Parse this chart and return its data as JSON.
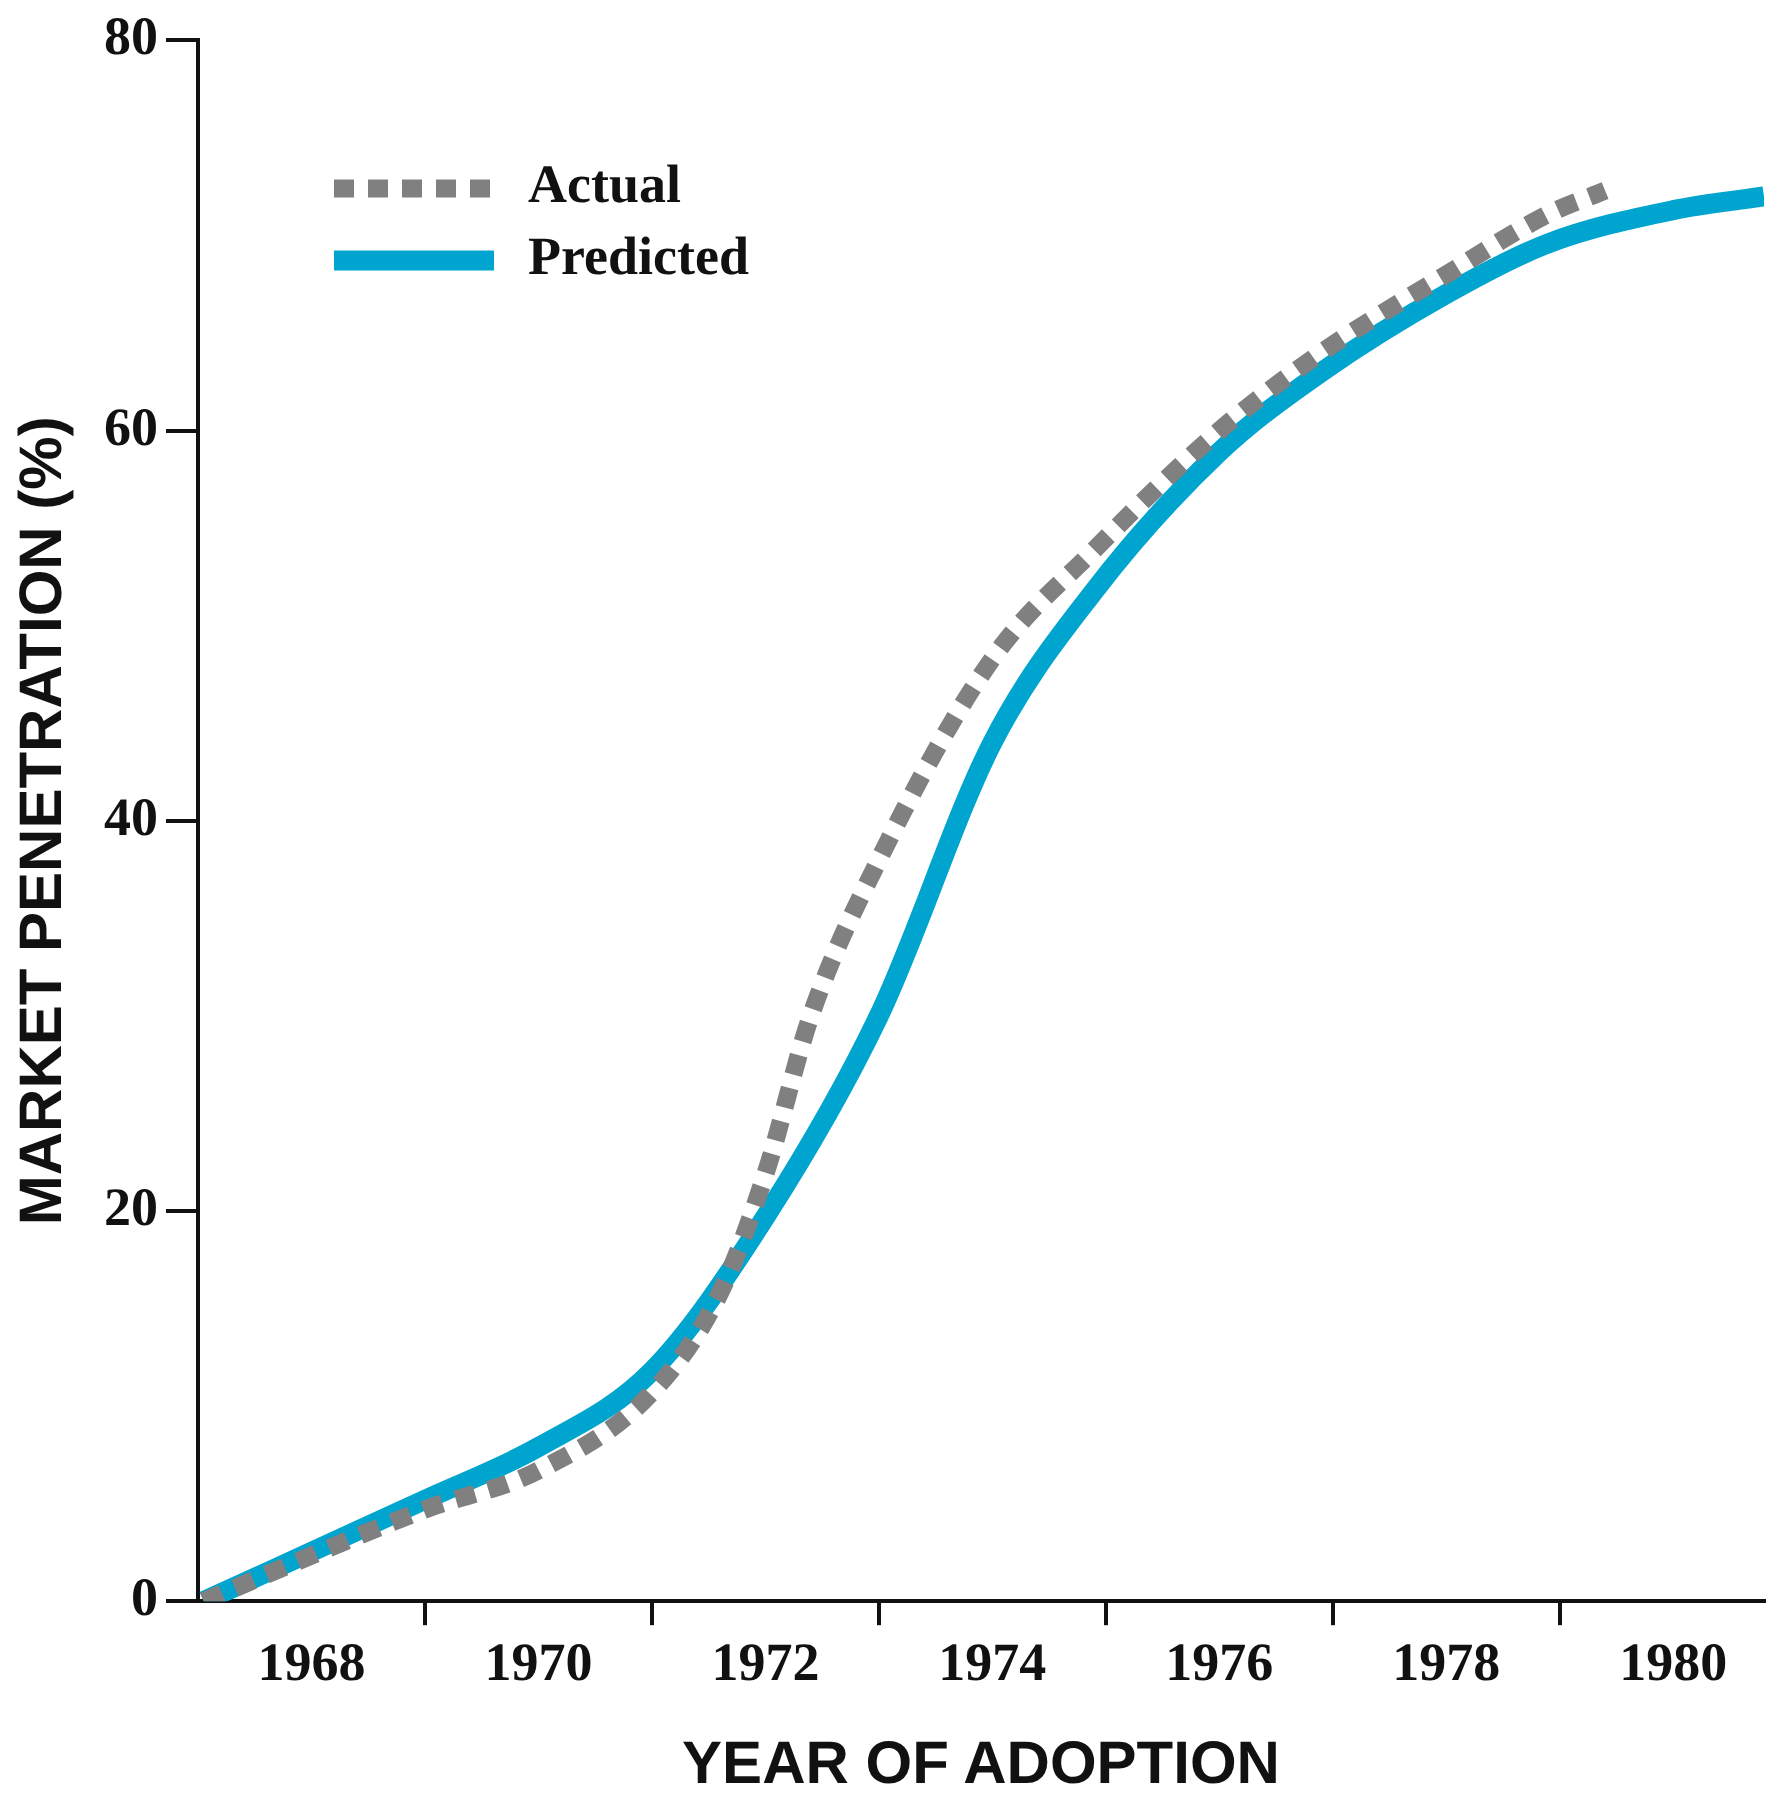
{
  "chart_data": {
    "type": "line",
    "xlabel": "YEAR OF ADOPTION",
    "ylabel": "MARKET PENETRATION (%)",
    "xlim": [
      1967,
      1980.8
    ],
    "xticks": [
      {
        "value": 1968,
        "label": "1968"
      },
      {
        "value": 1969,
        "label": null
      },
      {
        "value": 1970,
        "label": "1970"
      },
      {
        "value": 1971,
        "label": null
      },
      {
        "value": 1972,
        "label": "1972"
      },
      {
        "value": 1973,
        "label": null
      },
      {
        "value": 1974,
        "label": "1974"
      },
      {
        "value": 1975,
        "label": null
      },
      {
        "value": 1976,
        "label": "1976"
      },
      {
        "value": 1977,
        "label": null
      },
      {
        "value": 1978,
        "label": "1978"
      },
      {
        "value": 1979,
        "label": null
      },
      {
        "value": 1980,
        "label": "1980"
      }
    ],
    "ylim": [
      0,
      80
    ],
    "yticks": [
      0,
      20,
      40,
      60,
      80
    ],
    "grid": false,
    "legend": "top left",
    "marker": "none",
    "series": [
      {
        "name": "Actual",
        "color": "#808080",
        "line_style": "dotted",
        "x": [
          1967.05,
          1969,
          1970,
          1971,
          1971.6,
          1972,
          1972.4,
          1973,
          1974,
          1974.9,
          1976,
          1976.9,
          1978,
          1978.9,
          1979.4
        ],
        "values": [
          0,
          4.7,
          6.7,
          10.7,
          15.8,
          21.9,
          30,
          38,
          48.3,
          53.9,
          60,
          64,
          68,
          71.1,
          72.3
        ]
      },
      {
        "name": "Predicted",
        "color": "#00a5cf",
        "line_style": "solid",
        "x": [
          1967.05,
          1969,
          1970,
          1971,
          1972,
          1973,
          1974,
          1974.9,
          1976,
          1976.9,
          1978,
          1978.9,
          1980,
          1980.8
        ],
        "values": [
          0,
          5.2,
          7.9,
          11.8,
          19.7,
          30,
          44,
          51.8,
          58.9,
          63,
          67,
          69.6,
          71.3,
          72
        ]
      }
    ]
  }
}
